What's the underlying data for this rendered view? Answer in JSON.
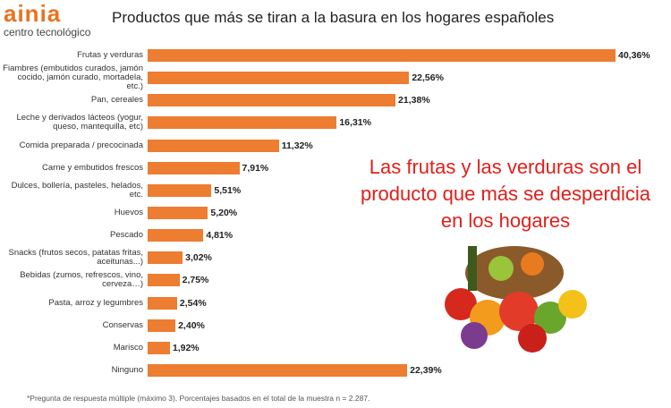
{
  "header": {
    "brand": "ainia",
    "tagline": "centro tecnológico"
  },
  "chart_data": {
    "type": "bar",
    "orientation": "horizontal",
    "title": "Productos que más se tiran a la basura en los hogares españoles",
    "categories": [
      "Frutas  y verduras",
      "Fiambres (embutidos curados, jamón cocido, jamón curado, mortadela, etc.)",
      "Pan, cereales",
      "Leche y derivados lácteos (yogur, queso, mantequilla, etc)",
      "Comida preparada / precocinada",
      "Carne y embutidos frescos",
      "Dulces, bollería, pasteles, helados, etc.",
      "Huevos",
      "Pescado",
      "Snacks (frutos secos, patatas fritas, aceitunas...)",
      "Bebidas (zumos, refrescos, vino, cerveza…)",
      "Pasta, arroz y legumbres",
      "Conservas",
      "Marisco",
      "Ninguno"
    ],
    "values": [
      40.36,
      22.56,
      21.38,
      16.31,
      11.32,
      7.91,
      5.51,
      5.2,
      4.81,
      3.02,
      2.75,
      2.54,
      2.4,
      1.92,
      22.39
    ],
    "value_labels": [
      "40,36%",
      "22,56%",
      "21,38%",
      "16,31%",
      "11,32%",
      "7,91%",
      "5,51%",
      "5,20%",
      "4,81%",
      "3,02%",
      "2,75%",
      "2,54%",
      "2,40%",
      "1,92%",
      "22,39%"
    ],
    "color": "#ed7d31",
    "annotation": "Las frutas y las verduras son el producto que más se desperdicia en los hogares",
    "footnote": "*Pregunta de respuesta múltiple (máximo 3). Porcentajes basados en el total de la muestra n = 2.287."
  }
}
